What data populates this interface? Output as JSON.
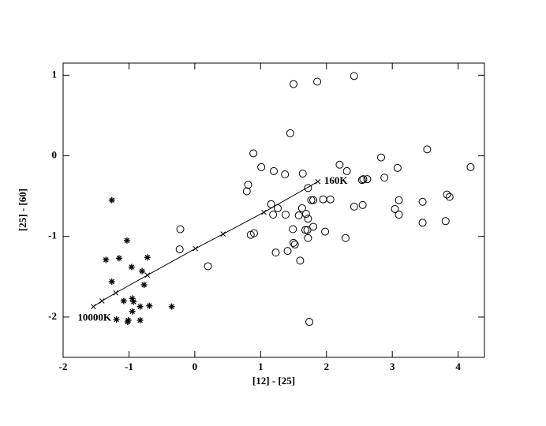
{
  "chart_data": {
    "type": "scatter",
    "xlabel": "[12] - [25]",
    "ylabel": "[25] - [60]",
    "xlim": [
      -2,
      4.4
    ],
    "ylim": [
      -2.5,
      1.15
    ],
    "xticks": [
      -2,
      -1,
      0,
      1,
      2,
      3,
      4
    ],
    "yticks": [
      -2,
      -1,
      0,
      1
    ],
    "annotations": [
      "160K",
      "10000K"
    ],
    "series": [
      {
        "marker": "star",
        "color": "#000000",
        "x": [
          -1.26,
          -1.03,
          -1.35,
          -1.15,
          -0.72,
          -0.96,
          -0.8,
          -1.26,
          -0.77,
          -0.95,
          -1.08,
          -0.93,
          -0.83,
          -0.69,
          -0.35,
          -0.95,
          -1.19,
          -1.02,
          -1.01,
          -0.83
        ],
        "values": [
          -0.55,
          -1.05,
          -1.29,
          -1.27,
          -1.26,
          -1.38,
          -1.43,
          -1.56,
          -1.6,
          -1.77,
          -1.8,
          -1.81,
          -1.87,
          -1.86,
          -1.87,
          -1.93,
          -2.03,
          -2.06,
          -2.04,
          -2.04
        ]
      },
      {
        "marker": "circle",
        "color": "#000000",
        "x": [
          1.5,
          1.86,
          2.42,
          1.45,
          0.89,
          3.53,
          2.83,
          4.19,
          1.01,
          1.2,
          2.2,
          2.31,
          3.08,
          0.81,
          1.37,
          1.64,
          2.56,
          2.88,
          0.79,
          1.72,
          2.54,
          2.62,
          1.16,
          1.26,
          1.63,
          1.77,
          1.8,
          1.95,
          2.06,
          2.42,
          2.55,
          3.1,
          3.46,
          3.83,
          3.87,
          1.19,
          1.38,
          1.58,
          1.69,
          1.72,
          3.04,
          3.1,
          1.8,
          3.46,
          3.81,
          -0.22,
          1.49,
          1.68,
          1.71,
          1.98,
          0.85,
          0.9,
          1.72,
          2.29,
          1.5,
          1.52,
          -0.23,
          1.23,
          1.41,
          0.2,
          1.6,
          1.74
        ],
        "values": [
          0.89,
          0.92,
          0.99,
          0.28,
          0.03,
          0.08,
          -0.02,
          -0.14,
          -0.14,
          -0.19,
          -0.11,
          -0.19,
          -0.15,
          -0.36,
          -0.23,
          -0.22,
          -0.29,
          -0.27,
          -0.44,
          -0.4,
          -0.3,
          -0.29,
          -0.6,
          -0.65,
          -0.65,
          -0.55,
          -0.55,
          -0.54,
          -0.54,
          -0.63,
          -0.61,
          -0.55,
          -0.57,
          -0.48,
          -0.51,
          -0.73,
          -0.73,
          -0.74,
          -0.72,
          -0.78,
          -0.66,
          -0.73,
          -0.88,
          -0.83,
          -0.81,
          -0.91,
          -0.91,
          -0.92,
          -0.92,
          -0.94,
          -0.98,
          -0.96,
          -1.02,
          -1.02,
          -1.08,
          -1.1,
          -1.16,
          -1.2,
          -1.18,
          -1.37,
          -1.3,
          -2.06
        ]
      },
      {
        "marker": "x",
        "line": true,
        "color": "#000000",
        "x": [
          -1.54,
          -1.41,
          -1.2,
          -0.72,
          0.01,
          0.43,
          1.05,
          1.87
        ],
        "values": [
          -1.87,
          -1.8,
          -1.7,
          -1.48,
          -1.15,
          -0.97,
          -0.7,
          -0.32
        ]
      }
    ]
  }
}
